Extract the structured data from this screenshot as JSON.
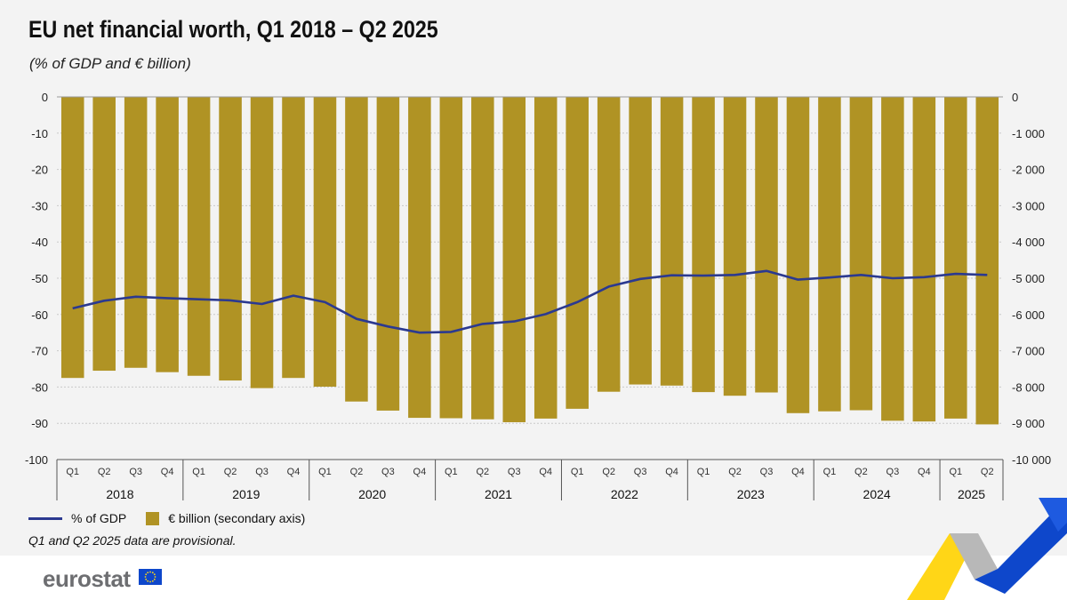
{
  "header": {
    "title": "EU net financial worth, Q1 2018 – Q2 2025",
    "subtitle": "(% of GDP and € billion)"
  },
  "legend": {
    "line_label": "% of GDP",
    "bar_label": "€ billion (secondary axis)"
  },
  "note": "Q1 and Q2 2025 data are provisional.",
  "footer": {
    "brand": "eurostat"
  },
  "colors": {
    "bar": "#b09324",
    "line": "#2b3990",
    "accent_yellow": "#ffd617",
    "accent_blue": "#0e47cb"
  },
  "chart_data": {
    "type": "bar",
    "categories": [
      "Q1",
      "Q2",
      "Q3",
      "Q4",
      "Q1",
      "Q2",
      "Q3",
      "Q4",
      "Q1",
      "Q2",
      "Q3",
      "Q4",
      "Q1",
      "Q2",
      "Q3",
      "Q4",
      "Q1",
      "Q2",
      "Q3",
      "Q4",
      "Q1",
      "Q2",
      "Q3",
      "Q4",
      "Q1",
      "Q2",
      "Q3",
      "Q4",
      "Q1",
      "Q2"
    ],
    "years": [
      "2018",
      "2019",
      "2020",
      "2021",
      "2022",
      "2023",
      "2024",
      "2025"
    ],
    "series": [
      {
        "name": "€ billion (secondary axis)",
        "type": "bar",
        "axis": "right",
        "values": [
          -7750,
          -7550,
          -7470,
          -7590,
          -7690,
          -7820,
          -8030,
          -7750,
          -7990,
          -8400,
          -8650,
          -8850,
          -8860,
          -8890,
          -8970,
          -8870,
          -8600,
          -8130,
          -7930,
          -7960,
          -8140,
          -8240,
          -8150,
          -8720,
          -8670,
          -8640,
          -8930,
          -8950,
          -8870,
          -9030
        ]
      },
      {
        "name": "% of GDP",
        "type": "line",
        "axis": "left",
        "values": [
          -58.3,
          -56.2,
          -55.1,
          -55.5,
          -55.8,
          -56.1,
          -57.1,
          -54.8,
          -56.6,
          -61.2,
          -63.3,
          -65.0,
          -64.8,
          -62.6,
          -61.9,
          -59.9,
          -56.6,
          -52.3,
          -50.2,
          -49.2,
          -49.3,
          -49.1,
          -48.0,
          -50.4,
          -49.8,
          -49.1,
          -50.0,
          -49.7,
          -48.8,
          -49.1
        ]
      }
    ],
    "y_left": {
      "ylim": [
        -100,
        0
      ],
      "ticks": [
        "0",
        "-10",
        "-20",
        "-30",
        "-40",
        "-50",
        "-60",
        "-70",
        "-80",
        "-90",
        "-100"
      ]
    },
    "y_right": {
      "ylim": [
        -10000,
        0
      ],
      "ticks": [
        "0",
        "-1 000",
        "-2 000",
        "-3 000",
        "-4 000",
        "-5 000",
        "-6 000",
        "-7 000",
        "-8 000",
        "-9 000",
        "-10 000"
      ]
    },
    "grid": true
  }
}
